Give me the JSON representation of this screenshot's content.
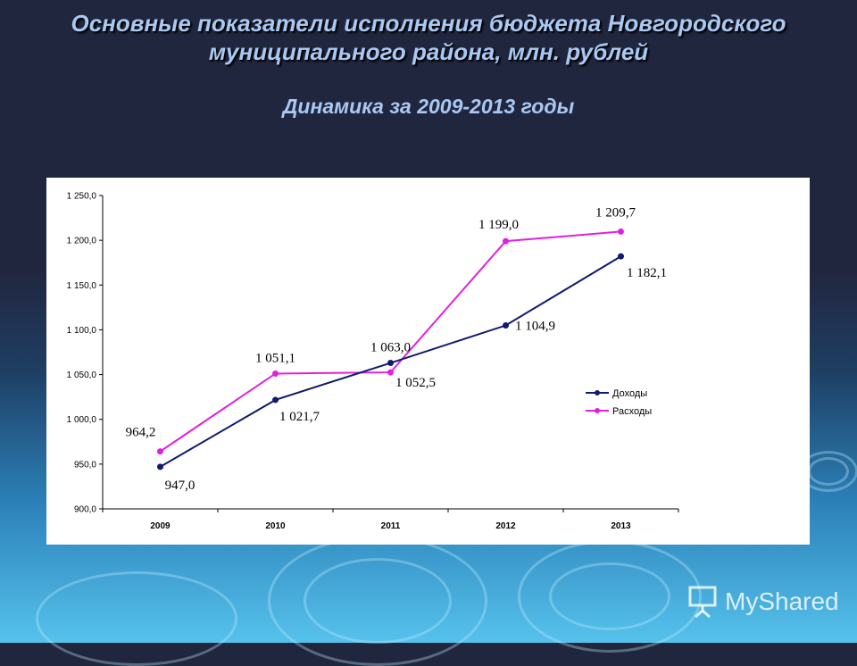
{
  "slide": {
    "title_line1": "Основные показатели исполнения бюджета Новгородского",
    "title_line2": "муниципального района, млн. рублей",
    "subtitle": "Динамика за 2009-2013 годы",
    "watermark": "MyShared"
  },
  "chart_data": {
    "type": "line",
    "title": "",
    "xlabel": "",
    "ylabel": "",
    "categories": [
      "2009",
      "2010",
      "2011",
      "2012",
      "2013"
    ],
    "ylim": [
      900,
      1250
    ],
    "yticks": [
      900,
      950,
      1000,
      1050,
      1100,
      1150,
      1200,
      1250
    ],
    "ytick_labels": [
      "900,0",
      "950,0",
      "1 000,0",
      "1 050,0",
      "1 100,0",
      "1 150,0",
      "1 200,0",
      "1 250,0"
    ],
    "grid": false,
    "legend": "right",
    "series": [
      {
        "name": "Доходы",
        "color": "#101a6e",
        "values": [
          947.0,
          1021.7,
          1063.0,
          1104.9,
          1182.1
        ],
        "labels": [
          "947,0",
          "1 021,7",
          "1 063,0",
          "1 104,9",
          "1 182,1"
        ]
      },
      {
        "name": "Расходы",
        "color": "#e020e0",
        "values": [
          964.2,
          1051.1,
          1052.5,
          1199.0,
          1209.7
        ],
        "labels": [
          "964,2",
          "1 051,1",
          "1 052,5",
          "1 199,0",
          "1 209,7"
        ]
      }
    ]
  }
}
